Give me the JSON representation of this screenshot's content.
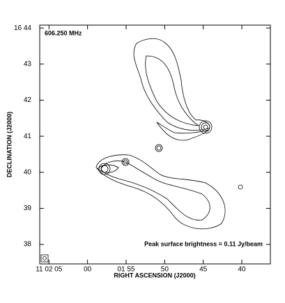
{
  "chart_data": {
    "type": "contour",
    "frequency_label": "606.250 MHz",
    "annotation": "Peak surface brightness = 0.11 Jy/beam",
    "xlabel": "RIGHT ASCENSION (J2000)",
    "ylabel": "DECLINATION (J2000)",
    "xlim": [
      126.2,
      96.3
    ],
    "xticks": [
      {
        "value": 125,
        "label": "11 02 05"
      },
      {
        "value": 120,
        "label": "00"
      },
      {
        "value": 115,
        "label": "01 55"
      },
      {
        "value": 110,
        "label": "50"
      },
      {
        "value": 105,
        "label": "45"
      },
      {
        "value": 100,
        "label": "40"
      }
    ],
    "ylim": [
      37.46,
      44.08
    ],
    "yticks": [
      38,
      39,
      40,
      41,
      42,
      43,
      {
        "value": 44,
        "label": "16 44"
      }
    ]
  }
}
